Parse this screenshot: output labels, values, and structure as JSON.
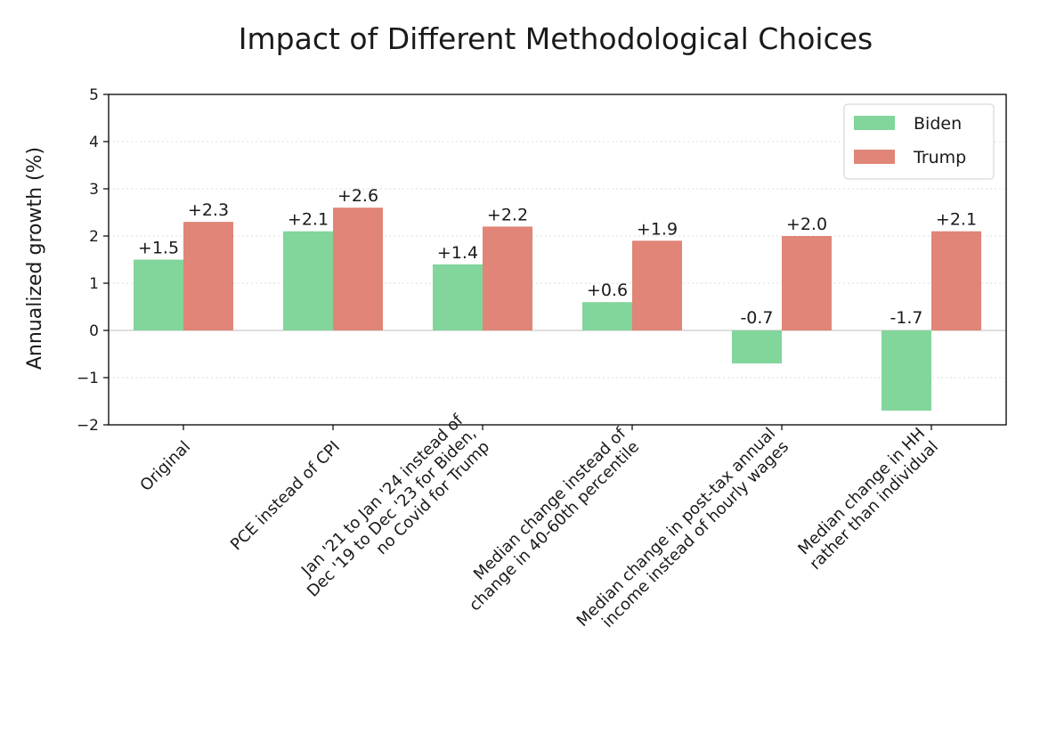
{
  "chart_data": {
    "type": "bar",
    "title": "Impact of Different Methodological Choices",
    "xlabel": "",
    "ylabel": "Annualized growth (%)",
    "ylim": [
      -2,
      5
    ],
    "yticks": [
      -2,
      -1,
      0,
      1,
      2,
      3,
      4,
      5
    ],
    "ytick_labels": [
      "−2",
      "−1",
      "0",
      "1",
      "2",
      "3",
      "4",
      "5"
    ],
    "grid": "horizontal dotted",
    "legend": "top-right",
    "categories": [
      [
        "Original"
      ],
      [
        "PCE instead of CPI"
      ],
      [
        "Jan '21 to Jan '24 instead of",
        "Dec '19 to Dec '23 for Biden,",
        "no Covid for Trump"
      ],
      [
        "Median change instead of",
        "change in 40-60th percentile"
      ],
      [
        "Median change in post-tax annual",
        "income instead of hourly wages"
      ],
      [
        "Median change in HH",
        "rather than individual"
      ]
    ],
    "series": [
      {
        "name": "Biden",
        "color": "#82d59b",
        "values": [
          1.5,
          2.1,
          1.4,
          0.6,
          -0.7,
          -1.7
        ],
        "labels": [
          "+1.5",
          "+2.1",
          "+1.4",
          "+0.6",
          "-0.7",
          "-1.7"
        ]
      },
      {
        "name": "Trump",
        "color": "#e08577",
        "values": [
          2.3,
          2.6,
          2.2,
          1.9,
          2.0,
          2.1
        ],
        "labels": [
          "+2.3",
          "+2.6",
          "+2.2",
          "+1.9",
          "+2.0",
          "+2.1"
        ]
      }
    ]
  }
}
